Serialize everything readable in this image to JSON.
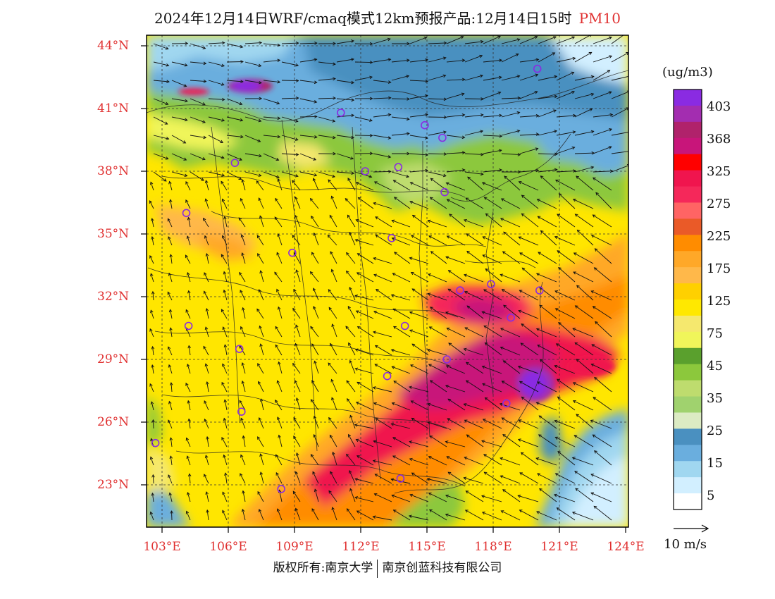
{
  "title": {
    "main": "2024年12月14日WRF/cmaq模式12km预报产品:12月14日15时",
    "pollutant": "PM10"
  },
  "axes": {
    "lat_labels": [
      "44°N",
      "41°N",
      "38°N",
      "35°N",
      "32°N",
      "29°N",
      "26°N",
      "23°N"
    ],
    "lon_labels": [
      "103°E",
      "106°E",
      "109°E",
      "112°E",
      "115°E",
      "118°E",
      "121°E",
      "124°E"
    ]
  },
  "legend": {
    "unit": "(ug/m3)",
    "labels": [
      "403",
      "368",
      "325",
      "275",
      "225",
      "175",
      "125",
      "75",
      "45",
      "35",
      "25",
      "15",
      "5"
    ],
    "colors": [
      "#8a2be2",
      "#a32db0",
      "#b0226b",
      "#c8157a",
      "#ff0000",
      "#f0154e",
      "#f5285a",
      "#ff6464",
      "#ea5a28",
      "#ff8c00",
      "#ffa828",
      "#ffb84a",
      "#ffd000",
      "#ffe800",
      "#f5e86e",
      "#f0f55a",
      "#5aa02d",
      "#8cc83c",
      "#bedc6e",
      "#a0d26e",
      "#dcebc3",
      "#4a90c0",
      "#6aaede",
      "#a0d7f0",
      "#d2efff",
      "#ffffff"
    ]
  },
  "wind_vector": {
    "label": "10 m/s"
  },
  "copyright": {
    "left": "版权所有:南京大学",
    "right": "南京创蓝科技有限公司"
  },
  "stations": [
    {
      "lat": 42.9,
      "lon": 120.0
    },
    {
      "lat": 40.8,
      "lon": 111.1
    },
    {
      "lat": 40.2,
      "lon": 114.9
    },
    {
      "lat": 39.6,
      "lon": 115.7
    },
    {
      "lat": 38.4,
      "lon": 106.3
    },
    {
      "lat": 38.0,
      "lon": 112.2
    },
    {
      "lat": 38.2,
      "lon": 113.7
    },
    {
      "lat": 37.0,
      "lon": 115.8
    },
    {
      "lat": 36.0,
      "lon": 104.1
    },
    {
      "lat": 34.8,
      "lon": 113.4
    },
    {
      "lat": 34.1,
      "lon": 108.9
    },
    {
      "lat": 32.3,
      "lon": 116.5
    },
    {
      "lat": 32.6,
      "lon": 117.9
    },
    {
      "lat": 32.3,
      "lon": 120.1
    },
    {
      "lat": 31.0,
      "lon": 118.8
    },
    {
      "lat": 30.6,
      "lon": 104.2
    },
    {
      "lat": 30.6,
      "lon": 114.0
    },
    {
      "lat": 29.5,
      "lon": 106.5
    },
    {
      "lat": 29.0,
      "lon": 115.9
    },
    {
      "lat": 28.2,
      "lon": 113.2
    },
    {
      "lat": 26.9,
      "lon": 118.6
    },
    {
      "lat": 26.5,
      "lon": 106.6
    },
    {
      "lat": 25.0,
      "lon": 102.7
    },
    {
      "lat": 23.3,
      "lon": 113.8
    },
    {
      "lat": 22.8,
      "lon": 108.4
    }
  ]
}
